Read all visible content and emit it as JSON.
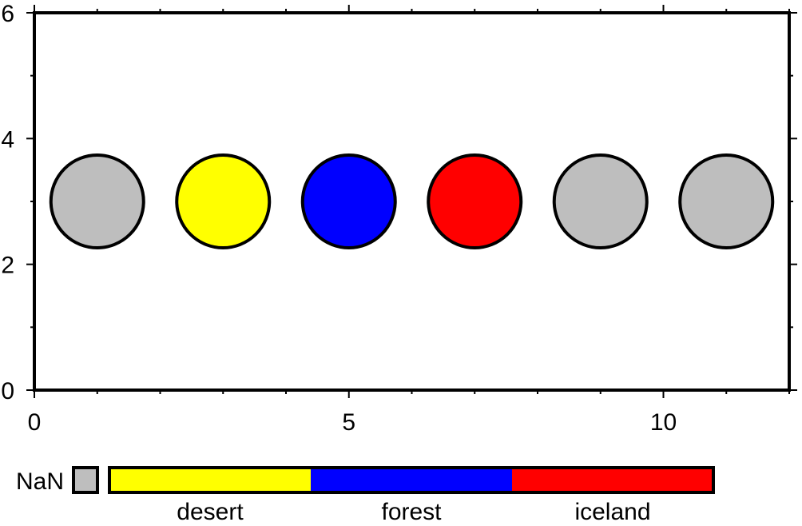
{
  "chart_data": {
    "type": "scatter",
    "x": [
      1,
      3,
      5,
      7,
      9,
      11
    ],
    "y": [
      3,
      3,
      3,
      3,
      3,
      3
    ],
    "point_categories": [
      null,
      "desert",
      "forest",
      "iceland",
      null,
      null
    ],
    "xlim": [
      0,
      12
    ],
    "ylim": [
      0,
      6
    ],
    "x_ticks": [
      "0",
      "5",
      "10"
    ],
    "y_ticks": [
      "0",
      "2",
      "4",
      "6"
    ],
    "colorbar": {
      "nan_label": "NaN",
      "nan_color": "#bebebe",
      "categories": [
        {
          "label": "desert",
          "color": "#ffff00"
        },
        {
          "label": "forest",
          "color": "#0000ff"
        },
        {
          "label": "iceland",
          "color": "#ff0000"
        }
      ]
    },
    "grid": false
  }
}
